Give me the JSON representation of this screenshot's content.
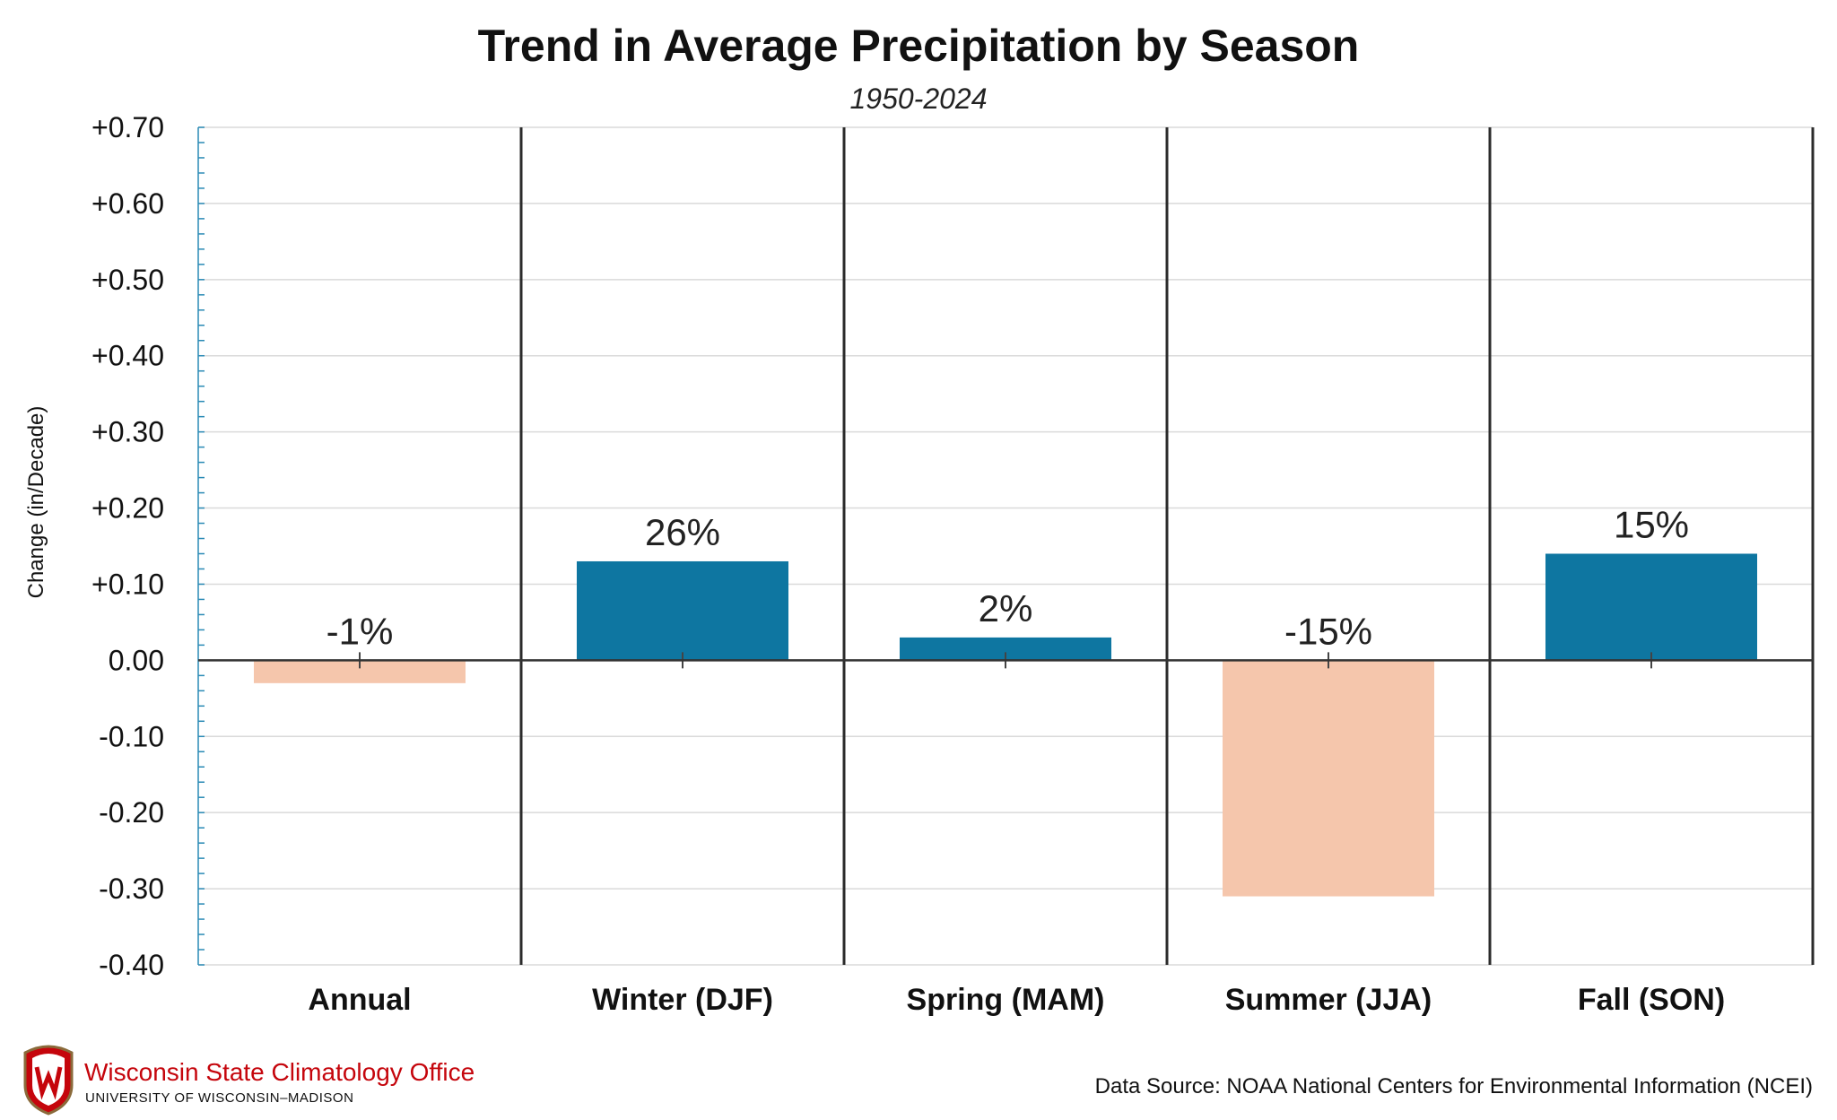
{
  "chart_data": {
    "type": "bar",
    "title": "Trend in Average Precipitation by Season",
    "subtitle": "1950-2024",
    "ylabel": "Change (in/Decade)",
    "xlabel": "",
    "categories": [
      "Annual",
      "Winter (DJF)",
      "Spring (MAM)",
      "Summer (JJA)",
      "Fall (SON)"
    ],
    "values": [
      -0.03,
      0.13,
      0.03,
      -0.31,
      0.14
    ],
    "data_labels": [
      "-1%",
      "26%",
      "2%",
      "-15%",
      "15%"
    ],
    "ylim": [
      -0.4,
      0.7
    ],
    "yticks": [
      0.7,
      0.6,
      0.5,
      0.4,
      0.3,
      0.2,
      0.1,
      0.0,
      -0.1,
      -0.2,
      -0.3,
      -0.4
    ],
    "ytick_labels": [
      "+0.70",
      "+0.60",
      "+0.50",
      "+0.40",
      "+0.30",
      "+0.20",
      "+0.10",
      "0.00",
      "-0.10",
      "-0.20",
      "-0.30",
      "-0.40"
    ],
    "colors": {
      "positive": "#0e76a1",
      "negative": "#f5c6ac"
    },
    "grid": true
  },
  "footer": {
    "logo_name": "Wisconsin State Climatology Office",
    "logo_sub": "UNIVERSITY OF WISCONSIN–MADISON",
    "source": "Data Source: NOAA National Centers for Environmental Information (NCEI)"
  }
}
